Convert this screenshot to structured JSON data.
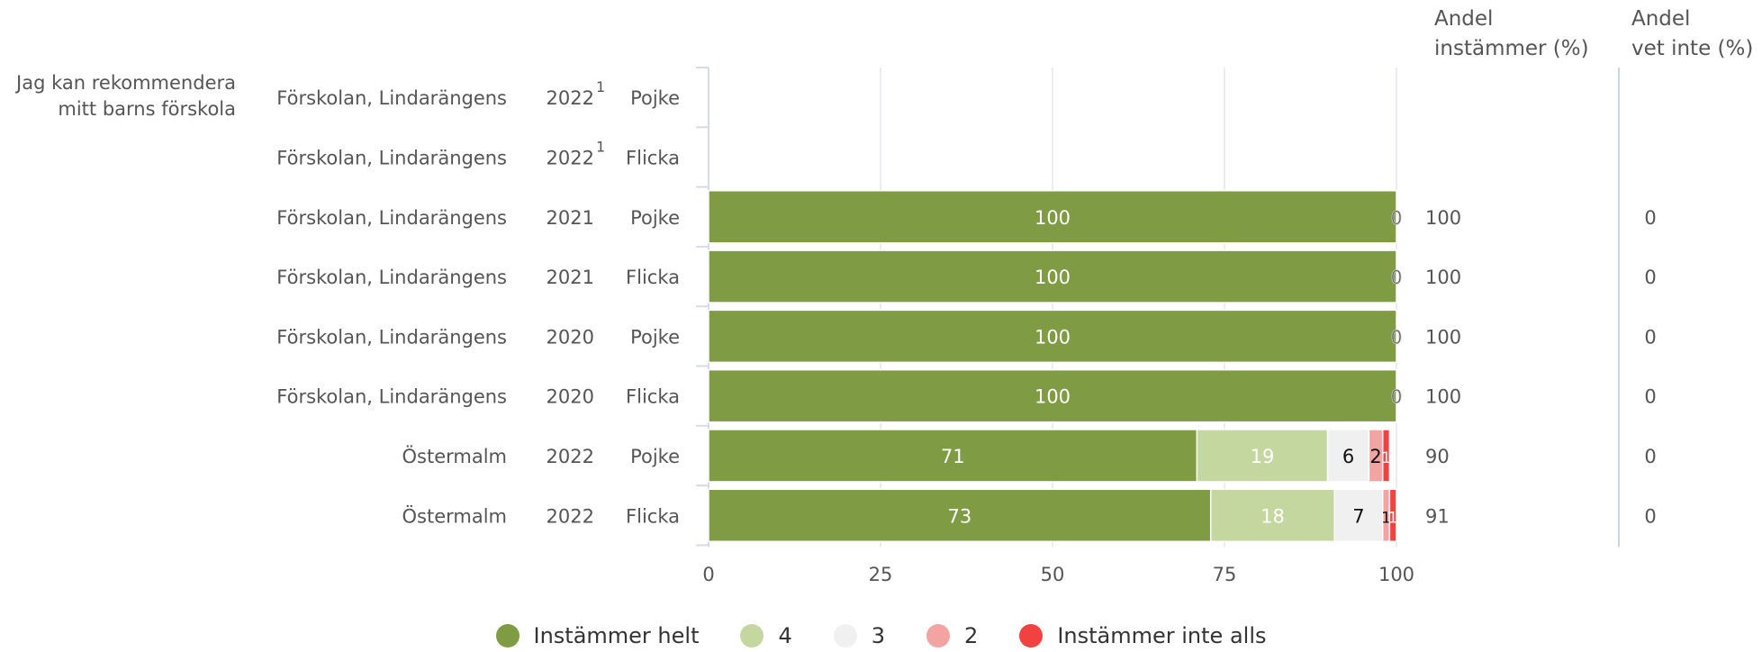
{
  "chart_data": {
    "type": "bar",
    "orientation": "horizontal",
    "stacked": true,
    "question": "Jag kan rekommendera mitt barns förskola",
    "rows": [
      {
        "unit": "Förskolan, Lindarängens",
        "year": "2022",
        "footnote": "1",
        "gender": "Pojke"
      },
      {
        "unit": "Förskolan, Lindarängens",
        "year": "2022",
        "footnote": "1",
        "gender": "Flicka"
      },
      {
        "unit": "Förskolan, Lindarängens",
        "year": "2021",
        "footnote": "",
        "gender": "Pojke"
      },
      {
        "unit": "Förskolan, Lindarängens",
        "year": "2021",
        "footnote": "",
        "gender": "Flicka"
      },
      {
        "unit": "Förskolan, Lindarängens",
        "year": "2020",
        "footnote": "",
        "gender": "Pojke"
      },
      {
        "unit": "Förskolan, Lindarängens",
        "year": "2020",
        "footnote": "",
        "gender": "Flicka"
      },
      {
        "unit": "Östermalm",
        "year": "2022",
        "footnote": "",
        "gender": "Pojke"
      },
      {
        "unit": "Östermalm",
        "year": "2022",
        "footnote": "",
        "gender": "Flicka"
      }
    ],
    "series": [
      {
        "name": "Instämmer helt",
        "color": "#7f9c45",
        "label_color": "#ffffff",
        "values": [
          null,
          null,
          100,
          100,
          100,
          100,
          71,
          73
        ]
      },
      {
        "name": "4",
        "color": "#c4d79e",
        "label_color": "#ffffff",
        "values": [
          null,
          null,
          0,
          0,
          0,
          0,
          19,
          18
        ]
      },
      {
        "name": "3",
        "color": "#f0f0f0",
        "label_color": "#111111",
        "values": [
          null,
          null,
          0,
          0,
          0,
          0,
          6,
          7
        ]
      },
      {
        "name": "2",
        "color": "#f4a3a3",
        "label_color": "#111111",
        "values": [
          null,
          null,
          0,
          0,
          0,
          0,
          2,
          1
        ]
      },
      {
        "name": "Instämmer inte alls",
        "color": "#f24141",
        "label_color": "#ffffff",
        "values": [
          null,
          null,
          0,
          0,
          0,
          0,
          1,
          1
        ]
      }
    ],
    "xlim": [
      0,
      100
    ],
    "xticks": [
      0,
      25,
      50,
      75,
      100
    ],
    "grid": true,
    "legend_position": "bottom",
    "side_columns": [
      {
        "header_line1": "Andel",
        "header_line2": "instämmer (%)",
        "values": [
          "",
          "",
          "100",
          "100",
          "100",
          "100",
          "90",
          "91"
        ]
      },
      {
        "header_line1": "Andel",
        "header_line2": "vet inte (%)",
        "values": [
          "",
          "",
          "0",
          "0",
          "0",
          "0",
          "0",
          "0"
        ]
      }
    ]
  }
}
